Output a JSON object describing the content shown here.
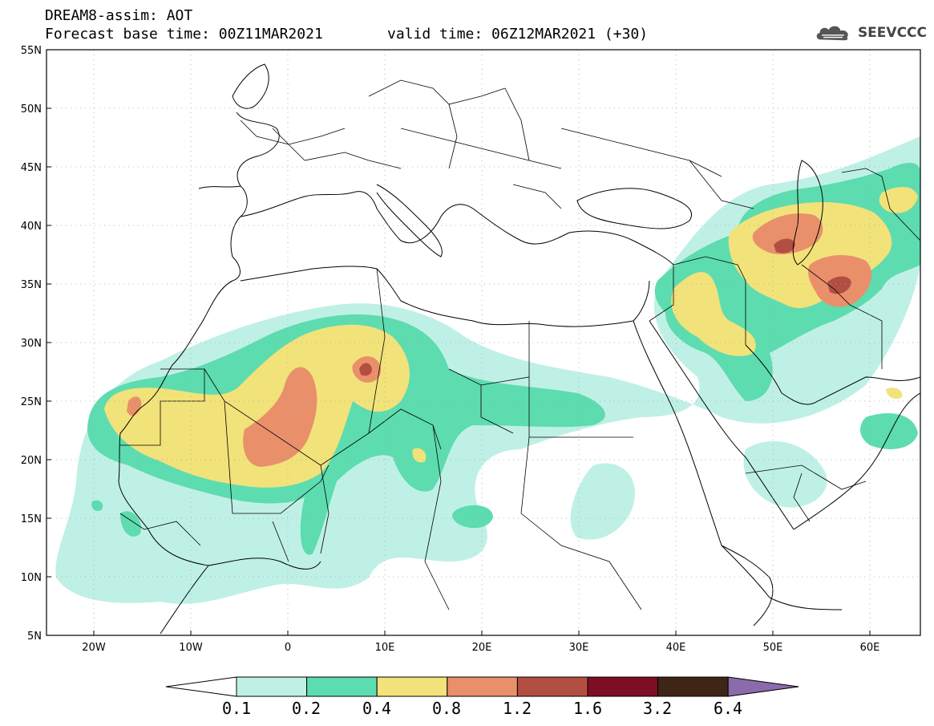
{
  "header": {
    "title": "DREAM8-assim: AOT",
    "base_time": "Forecast base time: 00Z11MAR2021",
    "valid_time": "valid time: 06Z12MAR2021 (+30)"
  },
  "logo": {
    "text": "SEEVCCC",
    "icon": "cloud-icon"
  },
  "map": {
    "lon_range": [
      -25,
      65
    ],
    "lat_range": [
      5,
      55
    ],
    "lat_ticks": [
      "55N",
      "50N",
      "45N",
      "40N",
      "35N",
      "30N",
      "25N",
      "20N",
      "15N",
      "10N",
      "5N"
    ],
    "lon_ticks": [
      "20W",
      "10W",
      "0",
      "10E",
      "20E",
      "30E",
      "40E",
      "50E",
      "60E"
    ],
    "grid": "dotted"
  },
  "colorbar": {
    "levels": [
      "0.1",
      "0.2",
      "0.4",
      "0.8",
      "1.2",
      "1.6",
      "3.2",
      "6.4"
    ],
    "colors": [
      "#bff0e6",
      "#5ddcaf",
      "#f2e27a",
      "#e9906b",
      "#b24f42",
      "#7e0e24",
      "#3e2516",
      "#8b6bab"
    ]
  }
}
